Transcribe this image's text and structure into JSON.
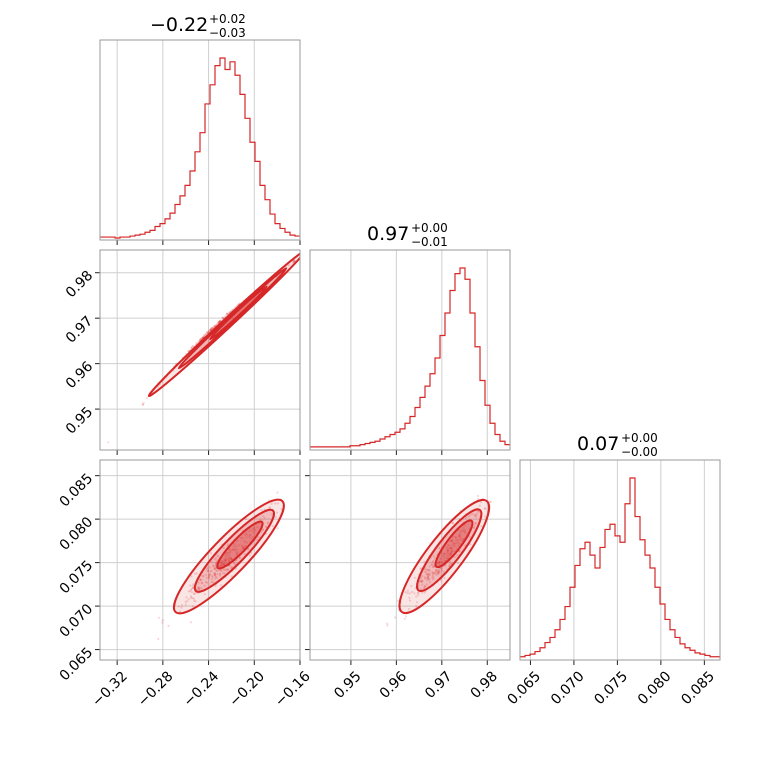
{
  "colors": {
    "accent": "#d62728",
    "frame": "#999999",
    "grid": "#cfcfcf"
  },
  "titles": [
    {
      "value": "−0.22",
      "plus": "+0.02",
      "minus": "−0.03"
    },
    {
      "value": "0.97",
      "plus": "+0.00",
      "minus": "−0.01"
    },
    {
      "value": "0.07",
      "plus": "+0.00",
      "minus": "−0.00"
    }
  ],
  "chart_data": {
    "type": "corner",
    "parameters": [
      {
        "range": [
          -0.335,
          -0.16
        ],
        "ticks": [
          -0.32,
          -0.28,
          -0.24,
          -0.2,
          -0.16
        ],
        "tick_labels": [
          "−0.32",
          "−0.28",
          "−0.24",
          "−0.20",
          "−0.16"
        ]
      },
      {
        "range": [
          0.941,
          0.985
        ],
        "ticks": [
          0.95,
          0.96,
          0.97,
          0.98
        ],
        "tick_labels": [
          "0.95",
          "0.96",
          "0.97",
          "0.98"
        ]
      },
      {
        "range": [
          0.0638,
          0.0868
        ],
        "ticks": [
          0.065,
          0.07,
          0.075,
          0.08,
          0.085
        ],
        "tick_labels": [
          "0.065",
          "0.070",
          "0.075",
          "0.080",
          "0.085"
        ]
      }
    ],
    "histograms": [
      {
        "parameter": 0,
        "bins": [
          -0.335,
          -0.16
        ],
        "counts": [
          1,
          1,
          1,
          0,
          1,
          1,
          2,
          3,
          4,
          6,
          8,
          12,
          15,
          20,
          26,
          35,
          44,
          55,
          70,
          90,
          110,
          140,
          160,
          180,
          188,
          176,
          184,
          170,
          150,
          125,
          100,
          80,
          55,
          40,
          25,
          15,
          10,
          6,
          3,
          2
        ]
      },
      {
        "parameter": 1,
        "bins": [
          0.941,
          0.985
        ],
        "counts": [
          1,
          1,
          1,
          1,
          1,
          1,
          1,
          1,
          2,
          2,
          3,
          4,
          5,
          6,
          8,
          10,
          12,
          14,
          17,
          22,
          28,
          36,
          45,
          55,
          66,
          80,
          100,
          120,
          140,
          155,
          160,
          150,
          120,
          90,
          60,
          38,
          22,
          12,
          6,
          3
        ]
      },
      {
        "parameter": 2,
        "bins": [
          0.0638,
          0.0868
        ],
        "counts": [
          1,
          2,
          3,
          5,
          8,
          12,
          16,
          22,
          30,
          40,
          55,
          72,
          85,
          90,
          80,
          70,
          86,
          100,
          104,
          95,
          90,
          120,
          140,
          110,
          92,
          80,
          70,
          55,
          42,
          30,
          22,
          16,
          11,
          8,
          6,
          4,
          3,
          2,
          1,
          1
        ]
      }
    ],
    "pairs": [
      {
        "x": 0,
        "y": 1,
        "kind": "2d-density",
        "points": [
          [
            -0.335,
            0.9405
          ],
          [
            -0.3,
            0.9505
          ],
          [
            -0.28,
            0.9565
          ],
          [
            -0.26,
            0.962
          ],
          [
            -0.24,
            0.967
          ],
          [
            -0.22,
            0.9715
          ],
          [
            -0.2,
            0.9755
          ],
          [
            -0.18,
            0.9795
          ],
          [
            -0.165,
            0.9825
          ]
        ]
      },
      {
        "x": 0,
        "y": 2,
        "kind": "2d-density",
        "points": [
          [
            -0.285,
            0.0675
          ],
          [
            -0.26,
            0.0705
          ],
          [
            -0.24,
            0.0735
          ],
          [
            -0.22,
            0.0755
          ],
          [
            -0.2,
            0.0785
          ],
          [
            -0.18,
            0.0815
          ]
        ]
      },
      {
        "x": 1,
        "y": 2,
        "kind": "2d-density",
        "points": [
          [
            0.958,
            0.0675
          ],
          [
            0.963,
            0.0705
          ],
          [
            0.967,
            0.0735
          ],
          [
            0.971,
            0.0755
          ],
          [
            0.975,
            0.0785
          ],
          [
            0.979,
            0.0815
          ]
        ]
      }
    ]
  }
}
